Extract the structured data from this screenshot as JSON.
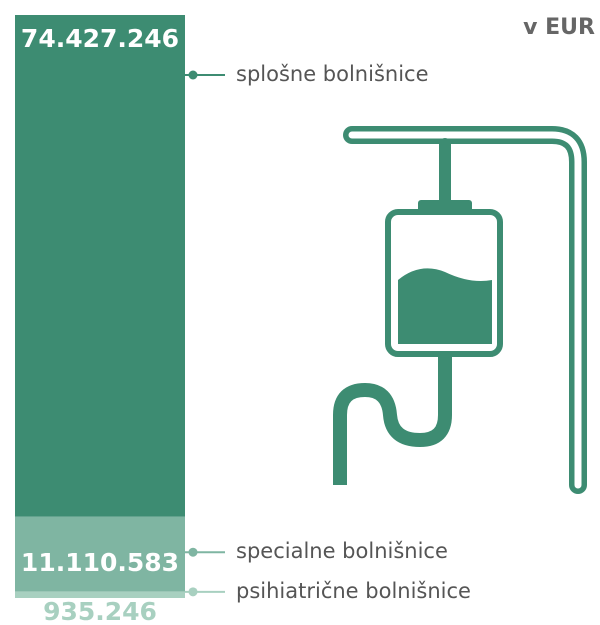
{
  "chart_data": {
    "type": "stacked-bar",
    "unit": "v EUR",
    "categories": [
      "splošne bolnišnice",
      "specialne bolnišnice",
      "psihiatrične bolnišnice"
    ],
    "values": [
      74427246,
      11110583,
      935246
    ],
    "value_labels": [
      "74.427.246",
      "11.110.583",
      "935.246"
    ],
    "colors": [
      "#3d8c72",
      "#7fb5a2",
      "#a8d0c0"
    ]
  }
}
